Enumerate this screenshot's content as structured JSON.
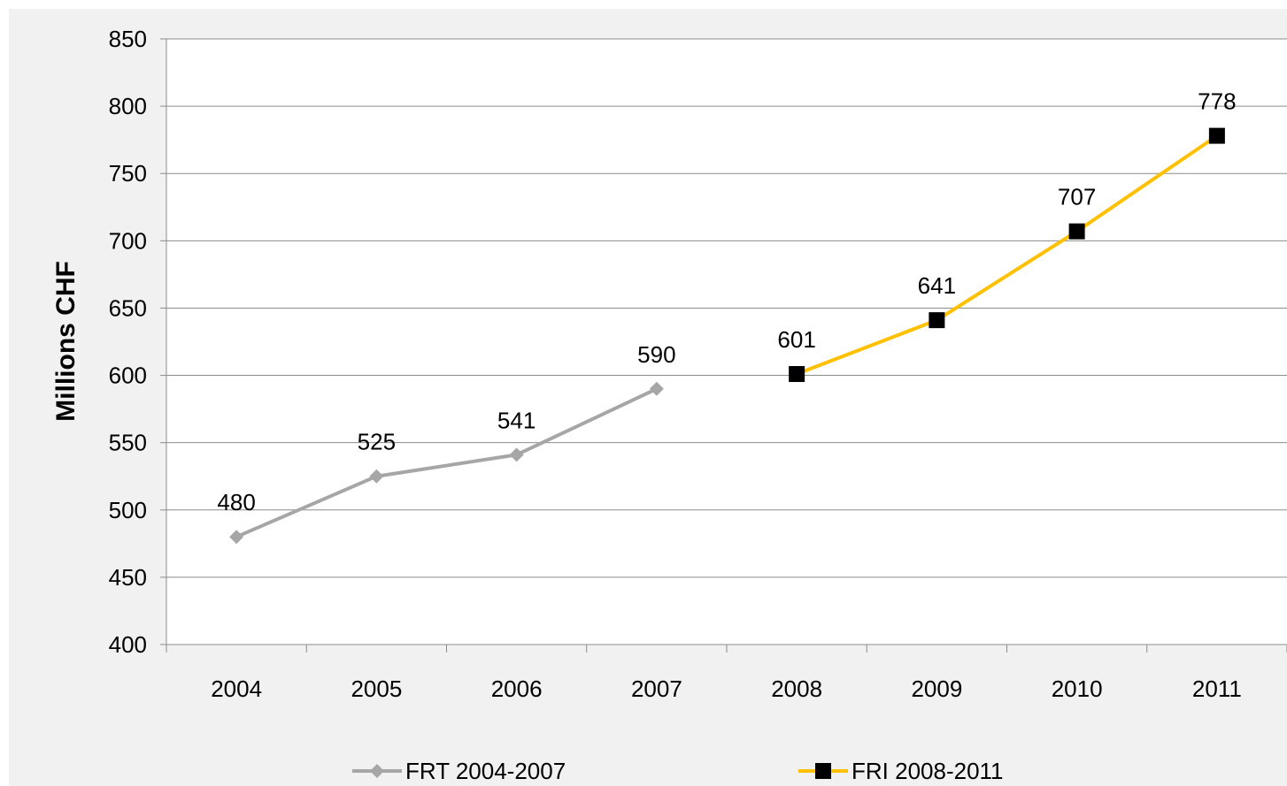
{
  "chart_data": {
    "type": "line",
    "ylabel": "Millions CHF",
    "xlabel": "",
    "ylim": [
      400,
      850
    ],
    "ytick_step": 50,
    "yticks": [
      "400",
      "450",
      "500",
      "550",
      "600",
      "650",
      "700",
      "750",
      "800",
      "850"
    ],
    "categories": [
      "2004",
      "2005",
      "2006",
      "2007",
      "2008",
      "2009",
      "2010",
      "2011"
    ],
    "grid": "horizontal",
    "legend_position": "bottom",
    "series": [
      {
        "name": "FRT 2004-2007",
        "color": "#a6a6a6",
        "marker": "diamond",
        "x": [
          "2004",
          "2005",
          "2006",
          "2007"
        ],
        "values": [
          480,
          525,
          541,
          590
        ],
        "labels": [
          "480",
          "525",
          "541",
          "590"
        ]
      },
      {
        "name": "FRI 2008-2011",
        "color": "#ffc000",
        "marker": "square",
        "marker_color": "#000000",
        "x": [
          "2008",
          "2009",
          "2010",
          "2011"
        ],
        "values": [
          601,
          641,
          707,
          778
        ],
        "labels": [
          "601",
          "641",
          "707",
          "778"
        ]
      }
    ]
  }
}
